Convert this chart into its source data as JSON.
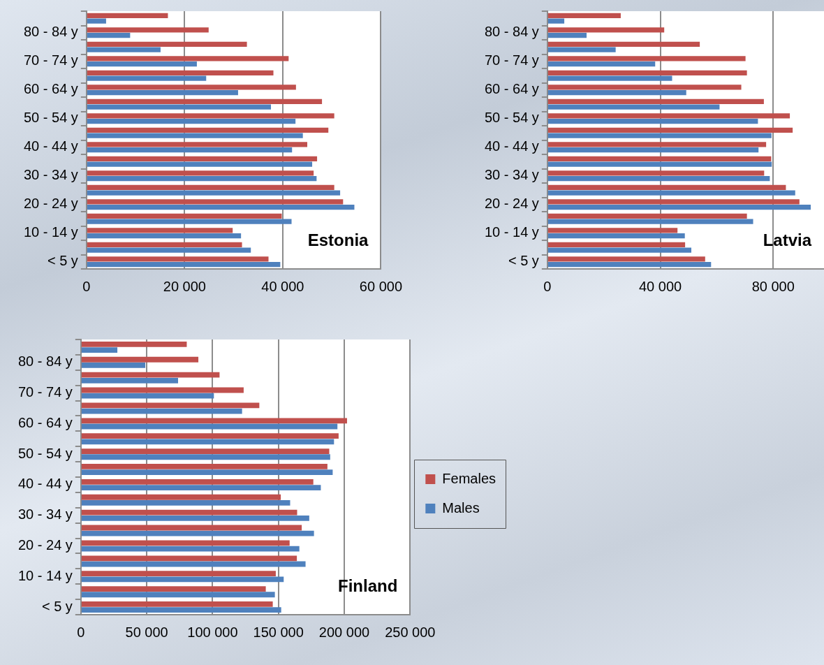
{
  "chart_data": [
    {
      "type": "bar",
      "orientation": "horizontal",
      "title": "Estonia",
      "categories": [
        null,
        "80 - 84 y",
        null,
        "70 - 74 y",
        null,
        "60 - 64 y",
        null,
        "50 - 54 y",
        null,
        "40 - 44 y",
        null,
        "30 - 34 y",
        null,
        "20 - 24 y",
        null,
        "10 - 14 y",
        null,
        "< 5 y"
      ],
      "series": [
        {
          "color": "#c0504d",
          "values": [
            16600,
            24900,
            32700,
            41200,
            38100,
            42700,
            48000,
            50500,
            49300,
            45000,
            47000,
            46300,
            50500,
            52300,
            39800,
            29800,
            31700,
            37100
          ]
        },
        {
          "color": "#4f81bd",
          "values": [
            4000,
            8900,
            15100,
            22500,
            24400,
            30900,
            37600,
            42600,
            44100,
            41900,
            46000,
            46900,
            51700,
            54600,
            41800,
            31500,
            33500,
            39500
          ]
        }
      ],
      "xlim": [
        0,
        60000
      ],
      "xticks": [
        {
          "value": 0,
          "label": "0"
        },
        {
          "value": 20000,
          "label": "20 000"
        },
        {
          "value": 40000,
          "label": "40 000"
        },
        {
          "value": 60000,
          "label": "60 000"
        }
      ],
      "grid": "x",
      "legend": false
    },
    {
      "type": "bar",
      "orientation": "horizontal",
      "title": "Latvia",
      "categories": [
        null,
        "80 - 84 y",
        null,
        "70 - 74 y",
        null,
        "60 - 64 y",
        null,
        "50 - 54 y",
        null,
        "40 - 44 y",
        null,
        "30 - 34 y",
        null,
        "20 - 24 y",
        null,
        "10 - 14 y",
        null,
        "< 5 y"
      ],
      "series": [
        {
          "color": "#c0504d",
          "values": [
            26000,
            41400,
            54000,
            70200,
            70700,
            68700,
            76700,
            85900,
            86900,
            77500,
            79300,
            76800,
            84500,
            89300,
            70700,
            46100,
            48800,
            55900
          ]
        },
        {
          "color": "#4f81bd",
          "values": [
            6000,
            13900,
            24200,
            38200,
            44200,
            49200,
            61000,
            74600,
            79400,
            74800,
            79500,
            78800,
            87800,
            93300,
            72900,
            48700,
            51000,
            58000
          ]
        }
      ],
      "xlim": [
        0,
        98000
      ],
      "xticks": [
        {
          "value": 0,
          "label": "0"
        },
        {
          "value": 40000,
          "label": "40 000"
        },
        {
          "value": 80000,
          "label": "80 000"
        }
      ],
      "grid": "x",
      "legend": false
    },
    {
      "type": "bar",
      "orientation": "horizontal",
      "title": "Finland",
      "categories": [
        null,
        "80 - 84 y",
        null,
        "70 - 74 y",
        null,
        "60 - 64 y",
        null,
        "50 - 54 y",
        null,
        "40 - 44 y",
        null,
        "30 - 34 y",
        null,
        "20 - 24 y",
        null,
        "10 - 14 y",
        null,
        "< 5 y"
      ],
      "series": [
        {
          "name": "Females",
          "color": "#c0504d",
          "values": [
            80400,
            89200,
            105300,
            123600,
            135500,
            202100,
            195700,
            188600,
            187200,
            176500,
            151800,
            164200,
            167700,
            158500,
            164000,
            148000,
            140400,
            145700
          ]
        },
        {
          "name": "Males",
          "color": "#4f81bd",
          "values": [
            27700,
            48900,
            73800,
            101000,
            122400,
            194800,
            192200,
            189300,
            191200,
            182200,
            158900,
            173400,
            177000,
            165900,
            170600,
            154000,
            147300,
            152100
          ]
        }
      ],
      "xlim": [
        0,
        250000
      ],
      "xticks": [
        {
          "value": 0,
          "label": "0"
        },
        {
          "value": 50000,
          "label": "50 000"
        },
        {
          "value": 100000,
          "label": "100 000"
        },
        {
          "value": 150000,
          "label": "150 000"
        },
        {
          "value": 200000,
          "label": "200 000"
        },
        {
          "value": 250000,
          "label": "250 000"
        }
      ],
      "grid": "x",
      "legend": "right"
    }
  ]
}
